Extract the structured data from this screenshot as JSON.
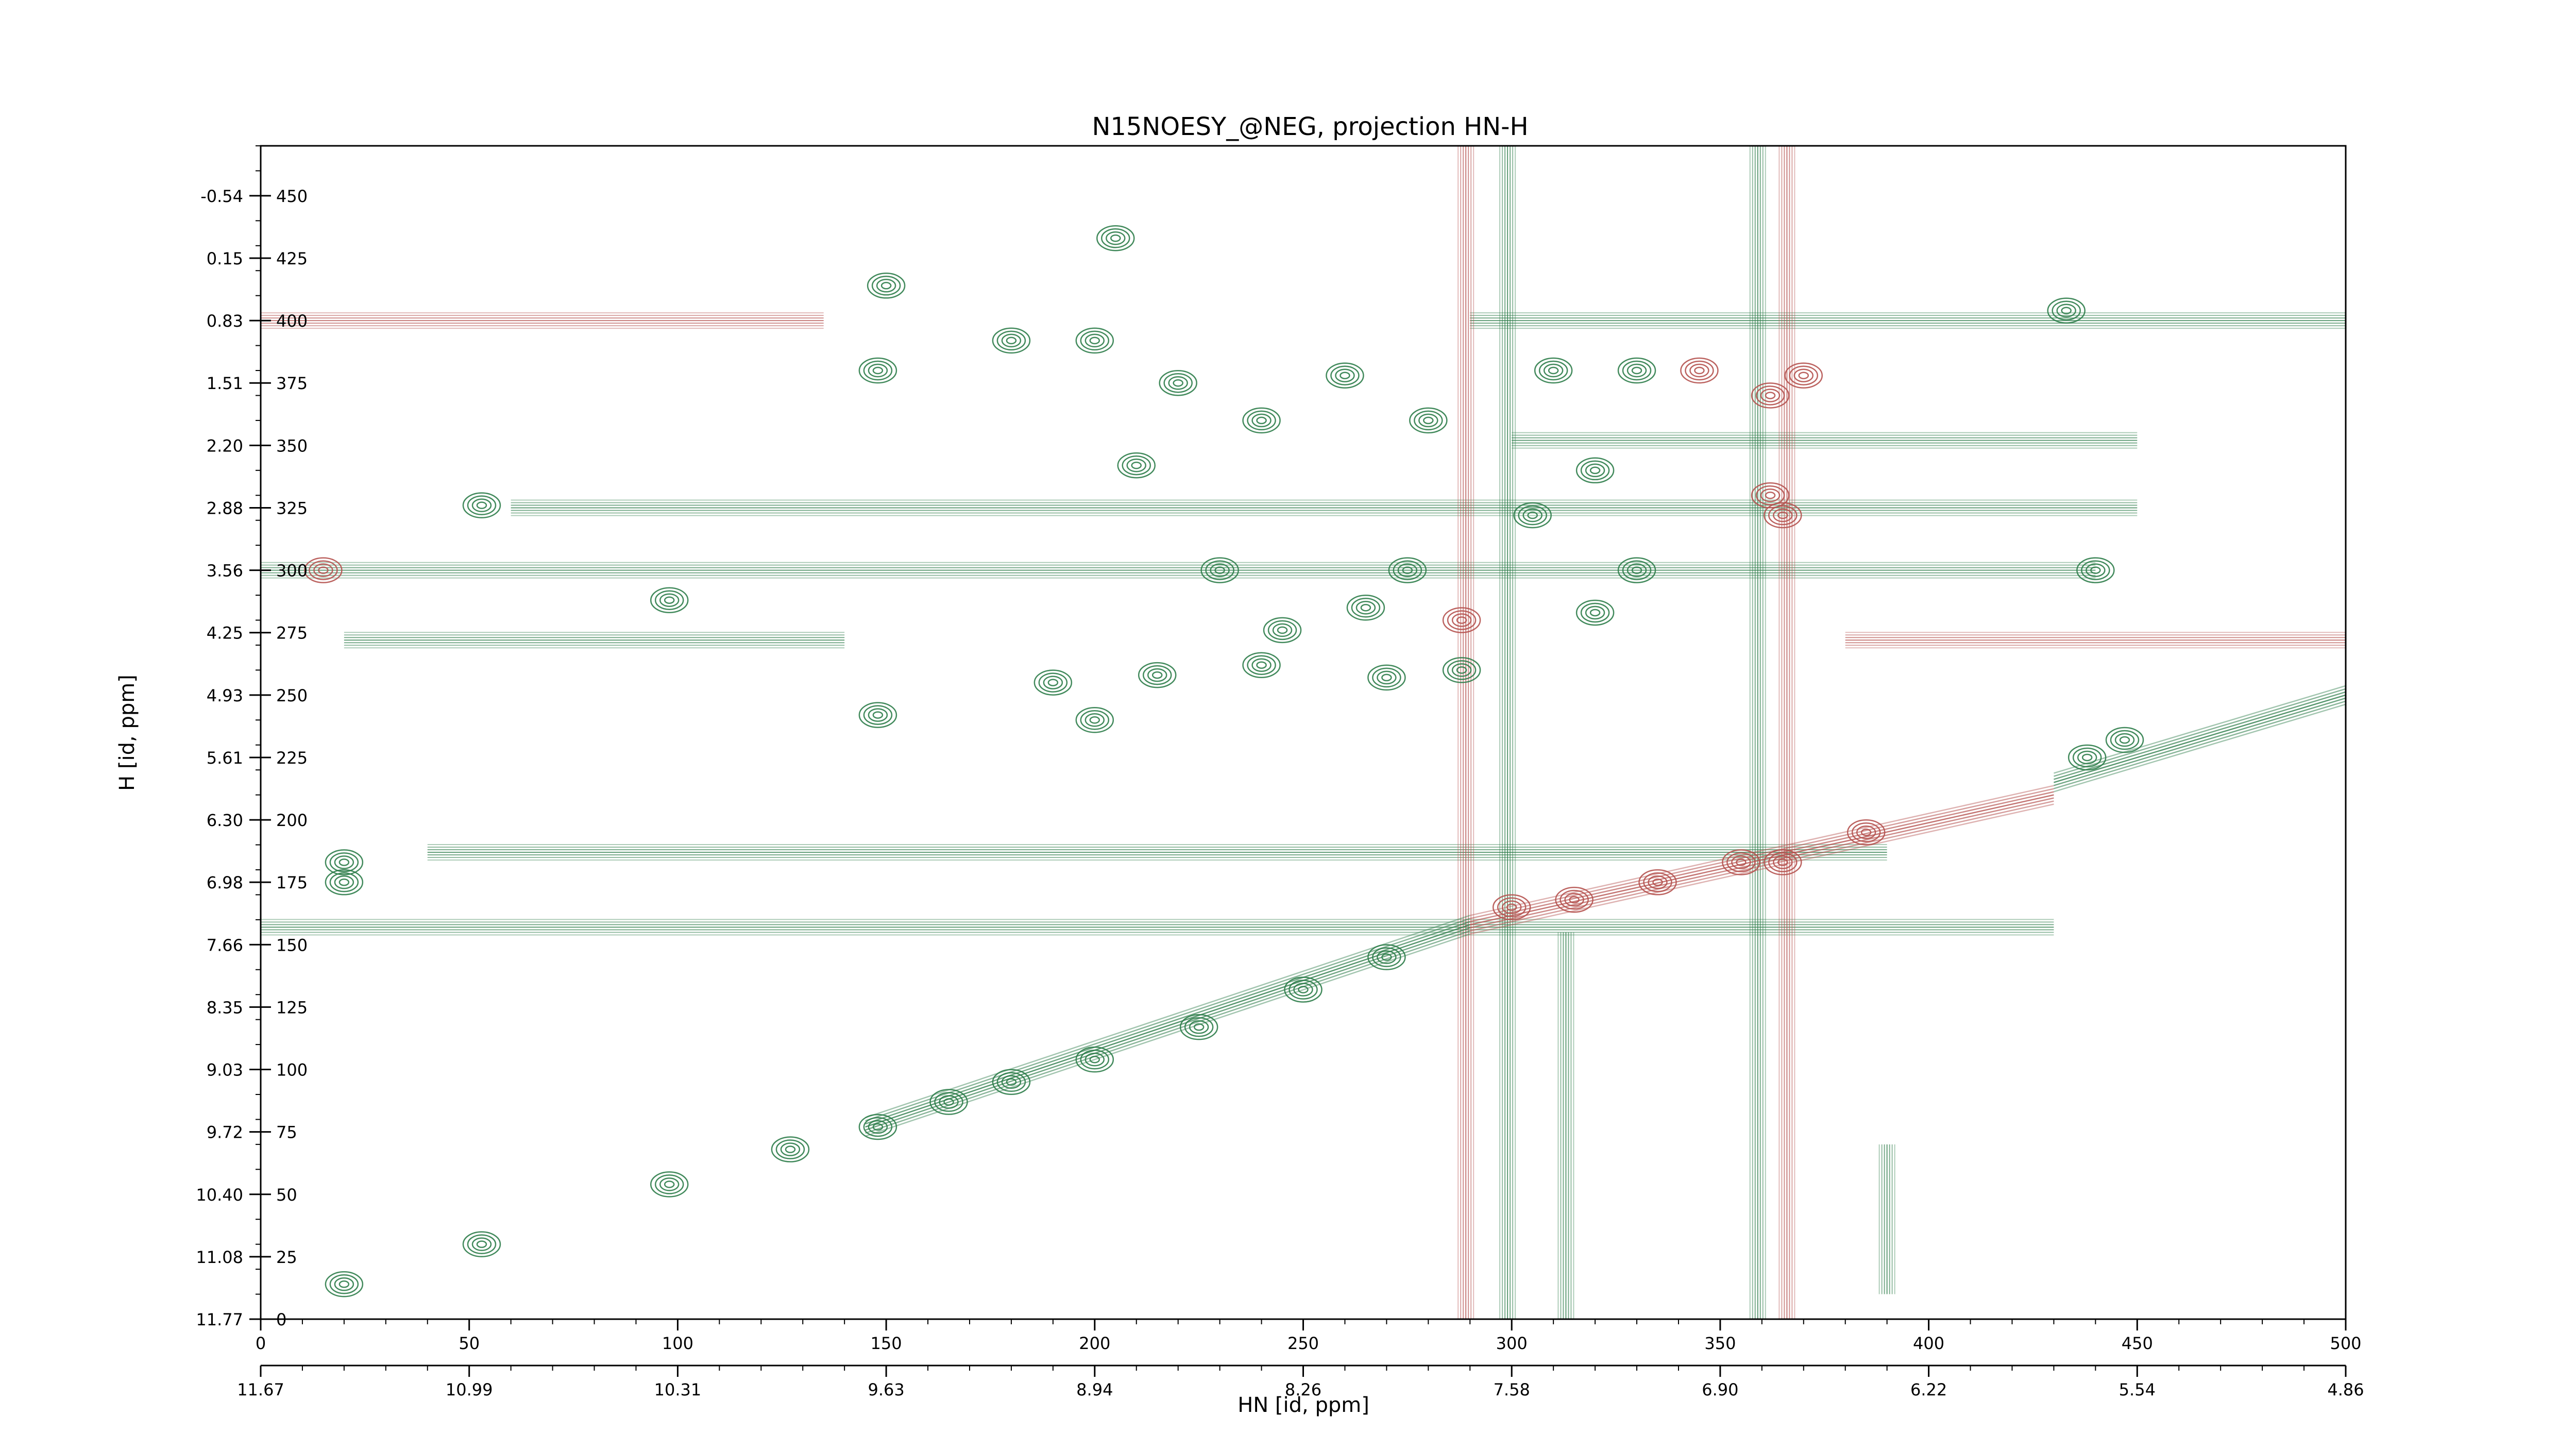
{
  "chart_data": {
    "type": "contour",
    "title": "N15NOESY_@NEG, projection HN-H",
    "xlabel": "HN [id, ppm]",
    "ylabel": "H [id, ppm]",
    "x_index_range": [
      0,
      500
    ],
    "y_index_range": [
      0,
      470
    ],
    "x_index_ticks": [
      "0",
      "50",
      "100",
      "150",
      "200",
      "250",
      "300",
      "350",
      "400",
      "450",
      "500"
    ],
    "x_ppm_ticks": [
      "11.67",
      "10.99",
      "10.31",
      "9.63",
      "8.94",
      "8.26",
      "7.58",
      "6.90",
      "6.22",
      "5.54",
      "4.86"
    ],
    "y_index_ticks": [
      "0",
      "25",
      "50",
      "75",
      "100",
      "125",
      "150",
      "175",
      "200",
      "225",
      "250",
      "275",
      "300",
      "325",
      "350",
      "375",
      "400",
      "425",
      "450"
    ],
    "y_ppm_ticks": [
      "11.77",
      "11.08",
      "10.40",
      "9.72",
      "9.03",
      "8.35",
      "7.66",
      "6.98",
      "6.30",
      "5.61",
      "4.93",
      "4.25",
      "3.56",
      "2.88",
      "2.20",
      "1.51",
      "0.83",
      "0.15",
      "-0.54"
    ],
    "series": [
      {
        "sign": "positive",
        "color": "#2e7d4a"
      },
      {
        "sign": "negative",
        "color": "#b5524f"
      }
    ],
    "horizontal_ridges": [
      {
        "y": 400,
        "x0": 0,
        "x1": 135,
        "sign": "negative"
      },
      {
        "y": 400,
        "x0": 290,
        "x1": 500,
        "sign": "positive"
      },
      {
        "y": 325,
        "x0": 60,
        "x1": 450,
        "sign": "positive"
      },
      {
        "y": 300,
        "x0": 0,
        "x1": 440,
        "sign": "positive"
      },
      {
        "y": 272,
        "x0": 20,
        "x1": 140,
        "sign": "positive"
      },
      {
        "y": 272,
        "x0": 380,
        "x1": 500,
        "sign": "negative"
      },
      {
        "y": 187,
        "x0": 40,
        "x1": 390,
        "sign": "positive"
      },
      {
        "y": 157,
        "x0": 0,
        "x1": 430,
        "sign": "positive"
      },
      {
        "y": 352,
        "x0": 300,
        "x1": 450,
        "sign": "positive"
      }
    ],
    "vertical_ridges": [
      {
        "x": 289,
        "y0": 0,
        "y1": 470,
        "sign": "negative"
      },
      {
        "x": 299,
        "y0": 0,
        "y1": 470,
        "sign": "positive"
      },
      {
        "x": 313,
        "y0": 0,
        "y1": 155,
        "sign": "positive"
      },
      {
        "x": 359,
        "y0": 0,
        "y1": 470,
        "sign": "positive"
      },
      {
        "x": 366,
        "y0": 0,
        "y1": 470,
        "sign": "negative"
      },
      {
        "x": 390,
        "y0": 10,
        "y1": 70,
        "sign": "positive"
      }
    ],
    "diagonal_ridges": [
      {
        "x0": 145,
        "y0": 77,
        "x1": 290,
        "y1": 158,
        "sign": "positive"
      },
      {
        "x0": 290,
        "y0": 158,
        "x1": 430,
        "y1": 210,
        "sign": "negative"
      },
      {
        "x0": 430,
        "y0": 215,
        "x1": 500,
        "y1": 250,
        "sign": "positive"
      }
    ],
    "peaks": [
      {
        "x": 20,
        "y": 14,
        "sign": "positive"
      },
      {
        "x": 53,
        "y": 30,
        "sign": "positive"
      },
      {
        "x": 98,
        "y": 54,
        "sign": "positive"
      },
      {
        "x": 127,
        "y": 68,
        "sign": "positive"
      },
      {
        "x": 148,
        "y": 77,
        "sign": "positive"
      },
      {
        "x": 165,
        "y": 87,
        "sign": "positive"
      },
      {
        "x": 180,
        "y": 95,
        "sign": "positive"
      },
      {
        "x": 200,
        "y": 104,
        "sign": "positive"
      },
      {
        "x": 225,
        "y": 117,
        "sign": "positive"
      },
      {
        "x": 250,
        "y": 132,
        "sign": "positive"
      },
      {
        "x": 270,
        "y": 145,
        "sign": "positive"
      },
      {
        "x": 98,
        "y": 288,
        "sign": "positive"
      },
      {
        "x": 53,
        "y": 326,
        "sign": "positive"
      },
      {
        "x": 148,
        "y": 242,
        "sign": "positive"
      },
      {
        "x": 148,
        "y": 380,
        "sign": "positive"
      },
      {
        "x": 180,
        "y": 392,
        "sign": "positive"
      },
      {
        "x": 200,
        "y": 392,
        "sign": "positive"
      },
      {
        "x": 220,
        "y": 375,
        "sign": "positive"
      },
      {
        "x": 240,
        "y": 360,
        "sign": "positive"
      },
      {
        "x": 260,
        "y": 378,
        "sign": "positive"
      },
      {
        "x": 280,
        "y": 360,
        "sign": "positive"
      },
      {
        "x": 210,
        "y": 342,
        "sign": "positive"
      },
      {
        "x": 230,
        "y": 300,
        "sign": "positive"
      },
      {
        "x": 245,
        "y": 276,
        "sign": "positive"
      },
      {
        "x": 265,
        "y": 285,
        "sign": "positive"
      },
      {
        "x": 190,
        "y": 255,
        "sign": "positive"
      },
      {
        "x": 200,
        "y": 240,
        "sign": "positive"
      },
      {
        "x": 215,
        "y": 258,
        "sign": "positive"
      },
      {
        "x": 240,
        "y": 262,
        "sign": "positive"
      },
      {
        "x": 270,
        "y": 257,
        "sign": "positive"
      },
      {
        "x": 288,
        "y": 260,
        "sign": "positive"
      },
      {
        "x": 275,
        "y": 300,
        "sign": "positive"
      },
      {
        "x": 320,
        "y": 283,
        "sign": "positive"
      },
      {
        "x": 330,
        "y": 300,
        "sign": "positive"
      },
      {
        "x": 330,
        "y": 380,
        "sign": "positive"
      },
      {
        "x": 345,
        "y": 380,
        "sign": "negative"
      },
      {
        "x": 362,
        "y": 370,
        "sign": "negative"
      },
      {
        "x": 362,
        "y": 330,
        "sign": "negative"
      },
      {
        "x": 305,
        "y": 322,
        "sign": "positive"
      },
      {
        "x": 310,
        "y": 380,
        "sign": "positive"
      },
      {
        "x": 320,
        "y": 340,
        "sign": "positive"
      },
      {
        "x": 440,
        "y": 300,
        "sign": "positive"
      },
      {
        "x": 433,
        "y": 404,
        "sign": "positive"
      },
      {
        "x": 447,
        "y": 232,
        "sign": "positive"
      },
      {
        "x": 438,
        "y": 225,
        "sign": "positive"
      },
      {
        "x": 288,
        "y": 280,
        "sign": "negative"
      },
      {
        "x": 300,
        "y": 165,
        "sign": "negative"
      },
      {
        "x": 315,
        "y": 168,
        "sign": "negative"
      },
      {
        "x": 335,
        "y": 175,
        "sign": "negative"
      },
      {
        "x": 355,
        "y": 183,
        "sign": "negative"
      },
      {
        "x": 365,
        "y": 183,
        "sign": "negative"
      },
      {
        "x": 385,
        "y": 195,
        "sign": "negative"
      },
      {
        "x": 370,
        "y": 378,
        "sign": "negative"
      },
      {
        "x": 365,
        "y": 322,
        "sign": "negative"
      },
      {
        "x": 205,
        "y": 433,
        "sign": "positive"
      },
      {
        "x": 150,
        "y": 414,
        "sign": "positive"
      },
      {
        "x": 15,
        "y": 300,
        "sign": "negative"
      },
      {
        "x": 20,
        "y": 183,
        "sign": "positive"
      },
      {
        "x": 20,
        "y": 175,
        "sign": "positive"
      }
    ]
  }
}
